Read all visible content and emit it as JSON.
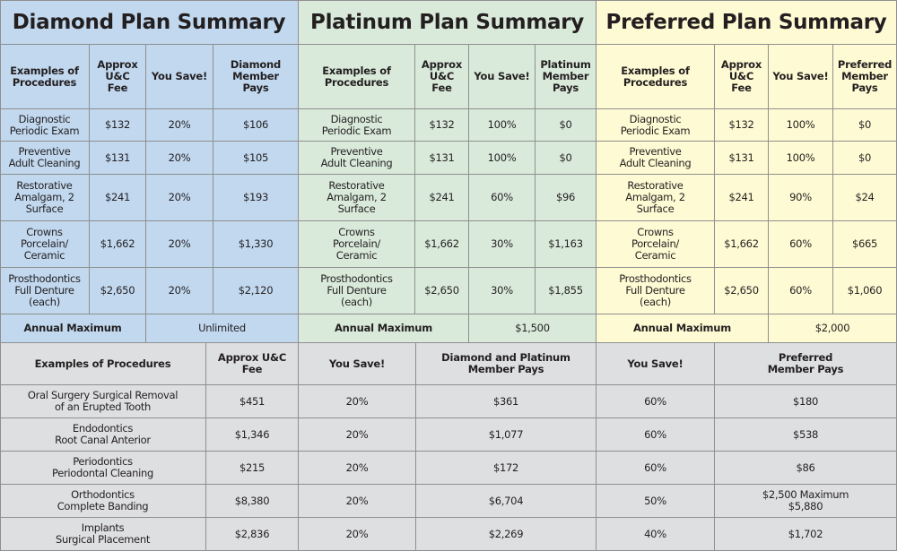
{
  "plans": [
    {
      "title": "Diamond Plan Summary",
      "color": "#c1d8ef",
      "headers": [
        "Examples of\nProcedures",
        "Approx\nU&C\nFee",
        "You Save!",
        "Diamond\nMember\nPays"
      ],
      "rows": [
        [
          "Diagnostic\nPeriodic Exam",
          "$132",
          "20%",
          "$106"
        ],
        [
          "Preventive\nAdult Cleaning",
          "$131",
          "20%",
          "$105"
        ],
        [
          "Restorative\nAmalgam, 2\nSurface",
          "$241",
          "20%",
          "$193"
        ],
        [
          "Crowns\nPorcelain/\nCeramic",
          "$1,662",
          "20%",
          "$1,330"
        ],
        [
          "Prosthodontics\nFull Denture\n(each)",
          "$2,650",
          "20%",
          "$2,120"
        ]
      ],
      "annual_max_label": "Annual Maximum",
      "annual_max_value": "Unlimited"
    },
    {
      "title": "Platinum Plan Summary",
      "color": "#d9eada",
      "headers": [
        "Examples of\nProcedures",
        "Approx\nU&C\nFee",
        "You Save!",
        "Platinum\nMember\nPays"
      ],
      "rows": [
        [
          "Diagnostic\nPeriodic Exam",
          "$132",
          "100%",
          "$0"
        ],
        [
          "Preventive\nAdult Cleaning",
          "$131",
          "100%",
          "$0"
        ],
        [
          "Restorative\nAmalgam, 2\nSurface",
          "$241",
          "60%",
          "$96"
        ],
        [
          "Crowns\nPorcelain/\nCeramic",
          "$1,662",
          "30%",
          "$1,163"
        ],
        [
          "Prosthodontics\nFull Denture\n(each)",
          "$2,650",
          "30%",
          "$1,855"
        ]
      ],
      "annual_max_label": "Annual Maximum",
      "annual_max_value": "$1,500"
    },
    {
      "title": "Preferred Plan Summary",
      "color": "#fefad3",
      "headers": [
        "Examples of\nProcedures",
        "Approx\nU&C\nFee",
        "You Save!",
        "Preferred\nMember\nPays"
      ],
      "rows": [
        [
          "Diagnostic\nPeriodic Exam",
          "$132",
          "100%",
          "$0"
        ],
        [
          "Preventive\nAdult Cleaning",
          "$131",
          "100%",
          "$0"
        ],
        [
          "Restorative\nAmalgam, 2\nSurface",
          "$241",
          "90%",
          "$24"
        ],
        [
          "Crowns\nPorcelain/\nCeramic",
          "$1,662",
          "60%",
          "$665"
        ],
        [
          "Prosthodontics\nFull Denture\n(each)",
          "$2,650",
          "60%",
          "$1,060"
        ]
      ],
      "annual_max_label": "Annual Maximum",
      "annual_max_value": "$2,000"
    }
  ],
  "specialty": {
    "color": "#dedfe1",
    "headers": [
      "Examples of Procedures",
      "Approx U&C\nFee",
      "You Save!",
      "Diamond and Platinum\nMember Pays",
      "You Save!",
      "Preferred\nMember Pays"
    ],
    "rows": [
      [
        "Oral Surgery Surgical Removal\nof an Erupted Tooth",
        "$451",
        "20%",
        "$361",
        "60%",
        "$180"
      ],
      [
        "Endodontics\nRoot Canal Anterior",
        "$1,346",
        "20%",
        "$1,077",
        "60%",
        "$538"
      ],
      [
        "Periodontics\nPeriodontal Cleaning",
        "$215",
        "20%",
        "$172",
        "60%",
        "$86"
      ],
      [
        "Orthodontics\nComplete Banding",
        "$8,380",
        "20%",
        "$6,704",
        "50%",
        "$2,500 Maximum\n$5,880"
      ],
      [
        "Implants\nSurgical Placement",
        "$2,836",
        "20%",
        "$2,269",
        "40%",
        "$1,702"
      ]
    ]
  }
}
